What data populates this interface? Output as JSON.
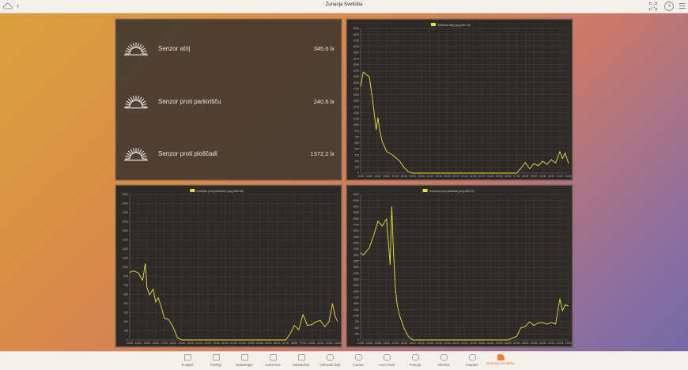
{
  "header": {
    "title": "Zunanja Svetloba",
    "back_icon": "chevron-left-icon",
    "app_icon": "cloud-icon",
    "right_icons": [
      "fullscreen-icon",
      "history-clock-icon",
      "menu-icon"
    ]
  },
  "sensors": [
    {
      "name": "Senzor atrij",
      "value": "345.6 lx",
      "icon": "sun-icon"
    },
    {
      "name": "Senzor proti parkirišču",
      "value": "240.6 lx",
      "icon": "sun-icon"
    },
    {
      "name": "Senzor proti ploščadi",
      "value": "1372.2 lx",
      "icon": "sun-icon"
    }
  ],
  "nav": [
    {
      "label": "R.apart",
      "icon": "house-icon"
    },
    {
      "label": "Pritličje",
      "icon": "floor-icon"
    },
    {
      "label": "Nadstropje",
      "icon": "floor-icon"
    },
    {
      "label": "Sortirnica",
      "icon": "floor-icon"
    },
    {
      "label": "Nastavitve",
      "icon": "floor-icon"
    },
    {
      "label": "Odhodni hall",
      "icon": "hex-icon"
    },
    {
      "label": "Carina",
      "icon": "hex-icon"
    },
    {
      "label": "Avio most",
      "icon": "hex-icon"
    },
    {
      "label": "Policija",
      "icon": "hex-icon"
    },
    {
      "label": "Okolica",
      "icon": "hex-icon"
    },
    {
      "label": "Napake",
      "icon": "hex-icon"
    },
    {
      "label": "Zunanja Svetloba",
      "icon": "light-icon",
      "active": true
    }
  ],
  "colors": {
    "accent": "#e8802e",
    "series": "#e5e23a"
  },
  "chart_data": [
    {
      "type": "line",
      "legend": "Svetloba atrij (avg:261.22)",
      "ylim": [
        0,
        3000
      ],
      "yticks": [
        "3000",
        "2875",
        "2750",
        "2625",
        "2500",
        "2375",
        "2250",
        "2125",
        "2000",
        "1875",
        "1750",
        "1625",
        "1500",
        "1375",
        "1250",
        "1125",
        "1000",
        "875",
        "750",
        "625",
        "500",
        "375",
        "250",
        "125",
        "0"
      ],
      "xticks": [
        "13:00",
        "14:00",
        "15:00",
        "16:00",
        "17:00",
        "18:00",
        "19:00",
        "20:00",
        "21:00",
        "22:00",
        "23:00",
        "00:00",
        "01:00",
        "02:00",
        "03:00",
        "04:00",
        "05:00",
        "06:00",
        "07:00",
        "08:00",
        "09:00",
        "10:00",
        "11:00",
        "12:00",
        "13:00"
      ],
      "x": [
        0,
        0.3,
        0.6,
        1,
        1.4,
        1.8,
        2,
        2.2,
        2.5,
        3,
        3.5,
        4,
        4.5,
        5,
        5.5,
        6,
        7,
        8,
        9,
        10,
        11,
        12,
        13,
        14,
        15,
        16,
        17,
        18,
        18.5,
        19,
        19.5,
        20,
        20.5,
        21,
        21.5,
        22,
        22.5,
        23,
        23.3,
        23.6,
        24
      ],
      "values": [
        1800,
        2100,
        2050,
        2000,
        1500,
        900,
        1150,
        900,
        650,
        450,
        400,
        330,
        250,
        120,
        30,
        0,
        0,
        0,
        0,
        0,
        0,
        0,
        0,
        0,
        0,
        0,
        0,
        0,
        100,
        220,
        90,
        200,
        150,
        250,
        180,
        280,
        210,
        450,
        300,
        420,
        200
      ]
    },
    {
      "type": "line",
      "legend": "Svetloba proti parkirišču (avg:205.08)",
      "ylim": [
        0,
        2000
      ],
      "yticks": [
        "2000",
        "1875",
        "1750",
        "1625",
        "1500",
        "1375",
        "1250",
        "1125",
        "1000",
        "875",
        "750",
        "625",
        "500",
        "375",
        "250",
        "125",
        "0"
      ],
      "xticks": [
        "13:00",
        "14:00",
        "15:00",
        "16:00",
        "17:00",
        "18:00",
        "19:00",
        "20:00",
        "21:00",
        "22:00",
        "23:00",
        "00:00",
        "01:00",
        "02:00",
        "03:00",
        "04:00",
        "05:00",
        "06:00",
        "07:00",
        "08:00",
        "09:00",
        "10:00",
        "11:00",
        "12:00",
        "13:00"
      ],
      "x": [
        0,
        0.5,
        1,
        1.5,
        1.8,
        2,
        2.3,
        2.7,
        3,
        3.3,
        3.7,
        4,
        4.5,
        5,
        5.5,
        6,
        7,
        8,
        9,
        10,
        11,
        12,
        13,
        14,
        15,
        16,
        17,
        18,
        18.5,
        19,
        19.5,
        20,
        20.5,
        21,
        21.5,
        22,
        22.5,
        23,
        23.4,
        23.7,
        24
      ],
      "values": [
        930,
        950,
        920,
        820,
        1050,
        720,
        620,
        700,
        520,
        580,
        430,
        300,
        280,
        180,
        30,
        0,
        0,
        0,
        0,
        0,
        0,
        0,
        0,
        0,
        0,
        0,
        0,
        0,
        80,
        200,
        140,
        350,
        200,
        210,
        250,
        270,
        180,
        250,
        500,
        330,
        250
      ]
    },
    {
      "type": "line",
      "legend": "Svetloba proti ploščadi (avg:855.71)",
      "ylim": [
        0,
        6000
      ],
      "yticks": [
        "6000",
        "5750",
        "5500",
        "5250",
        "5000",
        "4750",
        "4500",
        "4250",
        "4000",
        "3750",
        "3500",
        "3250",
        "3000",
        "2750",
        "2500",
        "2250",
        "2000",
        "1750",
        "1500",
        "1250",
        "1000",
        "750",
        "500",
        "250",
        "0"
      ],
      "xticks": [
        "13:00",
        "14:00",
        "15:00",
        "16:00",
        "17:00",
        "18:00",
        "19:00",
        "20:00",
        "21:00",
        "22:00",
        "23:00",
        "00:00",
        "01:00",
        "02:00",
        "03:00",
        "04:00",
        "05:00",
        "06:00",
        "07:00",
        "08:00",
        "09:00",
        "10:00",
        "11:00",
        "12:00",
        "13:00"
      ],
      "x": [
        0,
        0.3,
        1,
        1.5,
        2,
        2.5,
        3,
        3.4,
        3.6,
        3.8,
        4,
        4.2,
        4.5,
        5,
        5.5,
        6,
        6.5,
        7,
        8,
        9,
        10,
        11,
        12,
        13,
        14,
        15,
        16,
        17,
        18,
        18.5,
        19,
        19.5,
        20,
        20.5,
        21,
        21.5,
        22,
        22.5,
        23,
        23.3,
        23.6,
        24
      ],
      "values": [
        3600,
        3500,
        3800,
        4300,
        4900,
        4700,
        5000,
        3100,
        5500,
        3600,
        2200,
        1500,
        1000,
        500,
        150,
        0,
        0,
        0,
        0,
        0,
        0,
        0,
        0,
        0,
        0,
        0,
        0,
        0,
        150,
        500,
        550,
        750,
        600,
        700,
        720,
        650,
        720,
        650,
        1700,
        1200,
        1450,
        1400
      ]
    }
  ]
}
